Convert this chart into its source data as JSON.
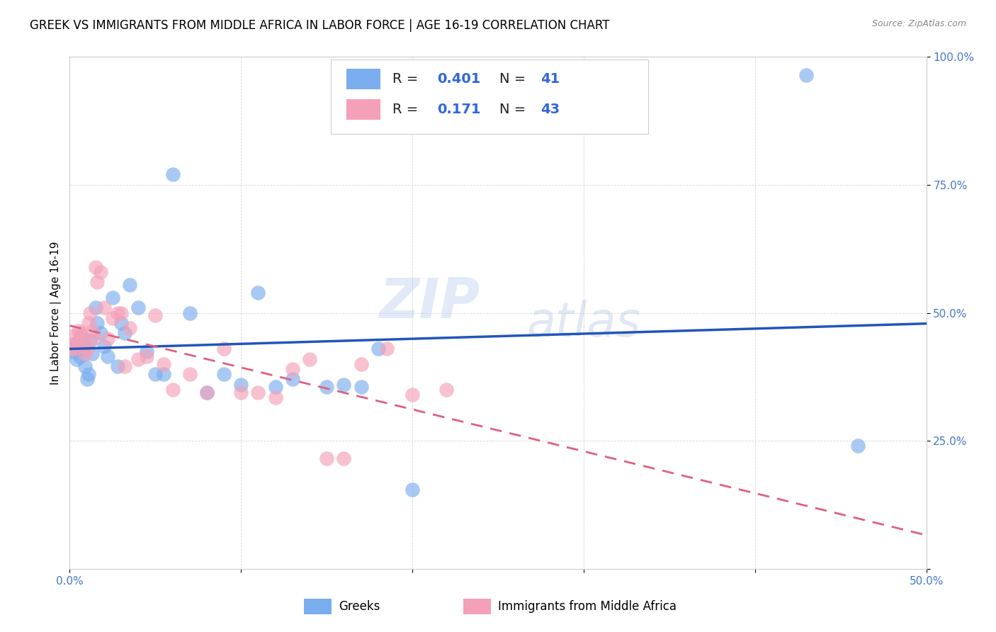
{
  "title": "GREEK VS IMMIGRANTS FROM MIDDLE AFRICA IN LABOR FORCE | AGE 16-19 CORRELATION CHART",
  "source": "Source: ZipAtlas.com",
  "ylabel": "In Labor Force | Age 16-19",
  "xlim": [
    0.0,
    0.5
  ],
  "ylim": [
    0.0,
    1.0
  ],
  "xticks": [
    0.0,
    0.1,
    0.2,
    0.3,
    0.4,
    0.5
  ],
  "yticks": [
    0.0,
    0.25,
    0.5,
    0.75,
    1.0
  ],
  "xticklabels": [
    "0.0%",
    "",
    "",
    "",
    "",
    "50.0%"
  ],
  "yticklabels_right": [
    "",
    "25.0%",
    "50.0%",
    "75.0%",
    "100.0%"
  ],
  "blue_color": "#7aadee",
  "pink_color": "#f4a0b8",
  "blue_line_color": "#2255bb",
  "pink_line_color": "#e06080",
  "blue_scatter_x": [
    0.002,
    0.003,
    0.004,
    0.005,
    0.006,
    0.007,
    0.008,
    0.009,
    0.01,
    0.011,
    0.012,
    0.013,
    0.015,
    0.016,
    0.018,
    0.02,
    0.022,
    0.025,
    0.028,
    0.03,
    0.032,
    0.035,
    0.04,
    0.045,
    0.05,
    0.055,
    0.06,
    0.07,
    0.08,
    0.09,
    0.1,
    0.11,
    0.12,
    0.13,
    0.15,
    0.16,
    0.17,
    0.18,
    0.2,
    0.43,
    0.46
  ],
  "blue_scatter_y": [
    0.425,
    0.44,
    0.41,
    0.43,
    0.415,
    0.455,
    0.43,
    0.395,
    0.37,
    0.38,
    0.445,
    0.42,
    0.51,
    0.48,
    0.46,
    0.435,
    0.415,
    0.53,
    0.395,
    0.48,
    0.46,
    0.555,
    0.51,
    0.425,
    0.38,
    0.38,
    0.77,
    0.5,
    0.345,
    0.38,
    0.36,
    0.54,
    0.355,
    0.37,
    0.355,
    0.36,
    0.355,
    0.43,
    0.155,
    0.965,
    0.24
  ],
  "pink_scatter_x": [
    0.001,
    0.002,
    0.003,
    0.004,
    0.005,
    0.006,
    0.007,
    0.008,
    0.009,
    0.01,
    0.011,
    0.012,
    0.013,
    0.014,
    0.015,
    0.016,
    0.018,
    0.02,
    0.022,
    0.025,
    0.028,
    0.03,
    0.032,
    0.035,
    0.04,
    0.045,
    0.05,
    0.055,
    0.06,
    0.07,
    0.08,
    0.09,
    0.1,
    0.11,
    0.12,
    0.13,
    0.14,
    0.15,
    0.16,
    0.17,
    0.185,
    0.2,
    0.22
  ],
  "pink_scatter_y": [
    0.43,
    0.455,
    0.44,
    0.43,
    0.465,
    0.46,
    0.455,
    0.44,
    0.42,
    0.43,
    0.48,
    0.5,
    0.465,
    0.45,
    0.59,
    0.56,
    0.58,
    0.51,
    0.45,
    0.49,
    0.5,
    0.5,
    0.395,
    0.47,
    0.41,
    0.415,
    0.495,
    0.4,
    0.35,
    0.38,
    0.345,
    0.43,
    0.345,
    0.345,
    0.335,
    0.39,
    0.41,
    0.215,
    0.215,
    0.4,
    0.43,
    0.34,
    0.35
  ],
  "watermark_zip": "ZIP",
  "watermark_atlas": "atlas",
  "title_fontsize": 12,
  "axis_label_fontsize": 11,
  "tick_fontsize": 11,
  "legend_fontsize": 13
}
